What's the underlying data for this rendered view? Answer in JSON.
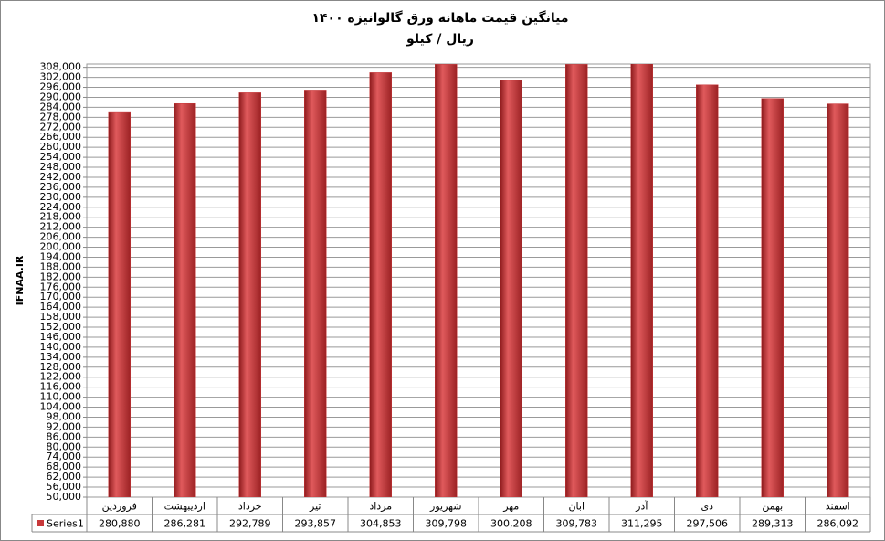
{
  "chart_data": {
    "type": "bar",
    "title": "میانگین قیمت ماهانه ورق گالوانیزه ۱۴۰۰",
    "subtitle": "ریال / کیلو",
    "y_label": "IFNAA.IR",
    "categories": [
      "فروردین",
      "اردیبهشت",
      "خرداد",
      "تیر",
      "مرداد",
      "شهریور",
      "مهر",
      "ابان",
      "آذر",
      "دی",
      "بهمن",
      "اسفند"
    ],
    "series": [
      {
        "name": "Series1",
        "color": "#c8383a",
        "values": [
          280880,
          286281,
          292789,
          293857,
          304853,
          309798,
          300208,
          309783,
          311295,
          297506,
          289313,
          286092
        ],
        "value_labels": [
          "280,880",
          "286,281",
          "292,789",
          "293,857",
          "304,853",
          "309,798",
          "300,208",
          "309,783",
          "311,295",
          "297,506",
          "289,313",
          "286,092"
        ]
      }
    ],
    "ylim": [
      50000,
      310000
    ],
    "yticks": [
      {
        "value": 50000,
        "label": "50,000"
      },
      {
        "value": 56000,
        "label": "56,000"
      },
      {
        "value": 62000,
        "label": "62,000"
      },
      {
        "value": 68000,
        "label": "68,000"
      },
      {
        "value": 74000,
        "label": "74,000"
      },
      {
        "value": 80000,
        "label": "80,000"
      },
      {
        "value": 86000,
        "label": "86,000"
      },
      {
        "value": 92000,
        "label": "92,000"
      },
      {
        "value": 98000,
        "label": "98,000"
      },
      {
        "value": 104000,
        "label": "104,000"
      },
      {
        "value": 110000,
        "label": "110,000"
      },
      {
        "value": 116000,
        "label": "116,000"
      },
      {
        "value": 122000,
        "label": "122,000"
      },
      {
        "value": 128000,
        "label": "128,000"
      },
      {
        "value": 134000,
        "label": "134,000"
      },
      {
        "value": 140000,
        "label": "140,000"
      },
      {
        "value": 146000,
        "label": "146,000"
      },
      {
        "value": 152000,
        "label": "152,000"
      },
      {
        "value": 158000,
        "label": "158,000"
      },
      {
        "value": 164000,
        "label": "164,000"
      },
      {
        "value": 170000,
        "label": "170,000"
      },
      {
        "value": 176000,
        "label": "176,000"
      },
      {
        "value": 182000,
        "label": "182,000"
      },
      {
        "value": 188000,
        "label": "188,000"
      },
      {
        "value": 194000,
        "label": "194,000"
      },
      {
        "value": 200000,
        "label": "200,000"
      },
      {
        "value": 206000,
        "label": "206,000"
      },
      {
        "value": 212000,
        "label": "212,000"
      },
      {
        "value": 218000,
        "label": "218,000"
      },
      {
        "value": 224000,
        "label": "224,000"
      },
      {
        "value": 230000,
        "label": "230,000"
      },
      {
        "value": 236000,
        "label": "236,000"
      },
      {
        "value": 242000,
        "label": "242,000"
      },
      {
        "value": 248000,
        "label": "248,000"
      },
      {
        "value": 254000,
        "label": "254,000"
      },
      {
        "value": 260000,
        "label": "260,000"
      },
      {
        "value": 266000,
        "label": "266,000"
      },
      {
        "value": 272000,
        "label": "272,000"
      },
      {
        "value": 278000,
        "label": "278,000"
      },
      {
        "value": 284000,
        "label": "284,000"
      },
      {
        "value": 290000,
        "label": "290,000"
      },
      {
        "value": 296000,
        "label": "296,000"
      },
      {
        "value": 302000,
        "label": "302,000"
      },
      {
        "value": 308000,
        "label": "308,000"
      }
    ],
    "grid": true
  }
}
